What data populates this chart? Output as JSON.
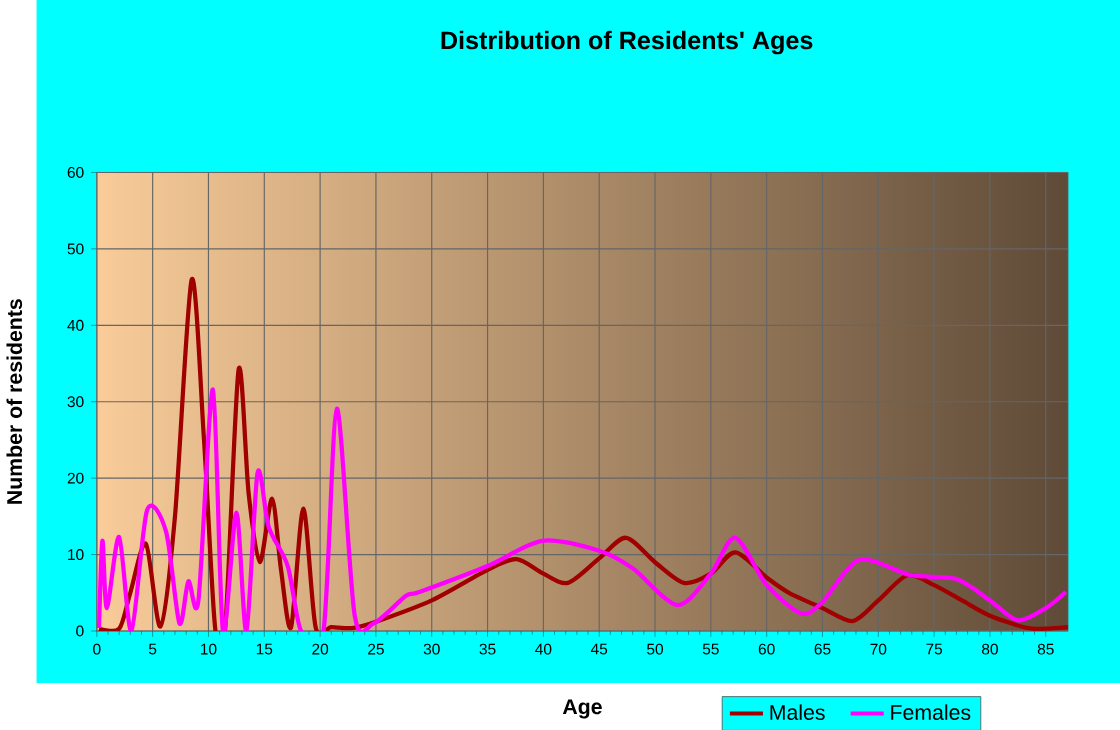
{
  "chart_data": {
    "type": "line",
    "title": "Distribution of Residents' Ages",
    "xlabel": "Age",
    "ylabel": "Number of residents",
    "xlim": [
      0,
      87
    ],
    "ylim": [
      0,
      60
    ],
    "xticks": [
      0,
      5,
      10,
      15,
      20,
      25,
      30,
      35,
      40,
      45,
      50,
      55,
      60,
      65,
      70,
      75,
      80,
      85
    ],
    "yticks": [
      0,
      10,
      20,
      30,
      40,
      50,
      60
    ],
    "grid": true,
    "legend": "bottom right",
    "marker": "none",
    "line_style": "solid",
    "series": [
      {
        "name": "Males",
        "color": "#a00000",
        "x": [
          0.2,
          2,
          3,
          4.4,
          5.7,
          7,
          8.5,
          9.6,
          10.6,
          11.5,
          12.7,
          13.6,
          14.6,
          15.7,
          16.5,
          17.4,
          18.5,
          19.6,
          21,
          23,
          25,
          30,
          35,
          37.6,
          40,
          42.2,
          45,
          47.4,
          50,
          52.6,
          55,
          57.2,
          60,
          62,
          65,
          67.7,
          70,
          72.6,
          75,
          77.5,
          80,
          83.3,
          85,
          87
        ],
        "values": [
          0.3,
          0.3,
          5,
          11.4,
          0.6,
          15,
          46,
          25,
          0.4,
          0.4,
          34.2,
          18,
          9,
          17.3,
          8,
          0.5,
          16,
          0.5,
          0.5,
          0.4,
          1.2,
          4,
          8,
          9.4,
          7.5,
          6.3,
          9.5,
          12.2,
          9,
          6.3,
          7.5,
          10.3,
          7,
          5,
          3,
          1.3,
          4,
          7.3,
          6,
          4,
          2,
          0.4,
          0.3,
          0.5
        ]
      },
      {
        "name": "Females",
        "color": "#ff00ff",
        "x": [
          0.2,
          0.5,
          0.9,
          2,
          3.1,
          4.5,
          6.2,
          7.4,
          8.2,
          9.1,
          10.4,
          11.3,
          12.5,
          13.4,
          14.4,
          15.4,
          17.1,
          18.3,
          20.3,
          21.5,
          23.1,
          24.8,
          27.7,
          28.9,
          35,
          39.9,
          45,
          48,
          52,
          55,
          57.2,
          60,
          63.1,
          65,
          68.3,
          72.9,
          77,
          80,
          82.5,
          85,
          86.8
        ],
        "values": [
          0.4,
          11.8,
          3,
          12.3,
          0,
          15.8,
          13,
          1,
          6.5,
          4,
          31.6,
          0,
          15.5,
          0,
          20.7,
          13.6,
          8.5,
          0,
          0,
          29.1,
          2,
          1,
          4.6,
          5.1,
          8.5,
          11.8,
          10.5,
          8.2,
          3.4,
          7.5,
          12.2,
          6,
          2.3,
          3.8,
          9.3,
          7.3,
          6.8,
          4,
          1.4,
          3,
          5.1
        ]
      }
    ]
  }
}
